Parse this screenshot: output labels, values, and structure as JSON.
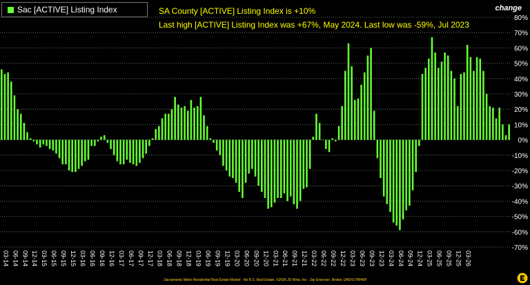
{
  "legend": {
    "label": "Sac [ACTIVE] Listing Index",
    "color": "#66ff33"
  },
  "header": {
    "line1": "SA County [ACTIVE] Listing Index is +10%",
    "line2": "Last high [ACTIVE] Listing Index was +67%, May 2024. Last low was -59%, Jul 2023",
    "change_label": "change"
  },
  "footer": "Sacramento Metro Residential Real Estate Market - No B.S. Real Estate, ©2026 JD Wise, Inc - Jay Emerson, Broker, DRE#1785408",
  "colors": {
    "bar": "#66ff33",
    "grid": "#8a8a8a",
    "header_text": "#ffff00",
    "footer_text": "#ffd21f"
  },
  "logo_icon": "jd-wise-logo-icon",
  "chart_data": {
    "type": "bar",
    "y_unit": "%",
    "ylim": [
      -70,
      80
    ],
    "ytick_step": 10,
    "grid": "horizontal-dotted",
    "yaxis_position": "right",
    "xtick_labels": [
      "03-14",
      "06-14",
      "09-14",
      "12-14",
      "03-15",
      "06-15",
      "09-15",
      "12-15",
      "03-16",
      "06-16",
      "09-16",
      "12-16",
      "03-17",
      "06-17",
      "09-17",
      "12-17",
      "03-18",
      "06-18",
      "09-18",
      "12-18",
      "03-19",
      "06-19",
      "09-19",
      "12-19",
      "03-20",
      "06-20",
      "09-20",
      "12-20",
      "03-21",
      "06-21",
      "09-21",
      "12-21",
      "03-22",
      "06-22",
      "09-22",
      "12-22",
      "03-23",
      "06-23",
      "09-23",
      "12-23",
      "03-24",
      "06-24",
      "09-24",
      "12-24",
      "03-25",
      "06-25",
      "09-25",
      "12-25",
      "03-26"
    ],
    "values": [
      46,
      43,
      44,
      38,
      29,
      20,
      17,
      11,
      5,
      1,
      -1,
      -3,
      -5,
      -3,
      -4,
      -6,
      -7,
      -9,
      -12,
      -16,
      -16,
      -20,
      -21,
      -21,
      -19,
      -17,
      -14,
      -13,
      -4,
      -4,
      -1,
      2,
      3,
      -2,
      -6,
      -10,
      -14,
      -16,
      -16,
      -13,
      -15,
      -16,
      -17,
      -15,
      -12,
      -9,
      -4,
      1,
      7,
      9,
      14,
      17,
      17,
      20,
      28,
      23,
      21,
      22,
      19,
      26,
      21,
      22,
      28,
      16,
      9,
      1,
      -2,
      -7,
      -10,
      -17,
      -20,
      -24,
      -25,
      -28,
      -34,
      -38,
      -28,
      -22,
      -19,
      -24,
      -30,
      -34,
      -38,
      -45,
      -44,
      -41,
      -38,
      -38,
      -35,
      -40,
      -37,
      -42,
      -45,
      -40,
      -32,
      -31,
      -19,
      2,
      17,
      11,
      0,
      -6,
      -8,
      1,
      -1,
      9,
      22,
      45,
      63,
      48,
      26,
      27,
      36,
      44,
      55,
      60,
      19,
      -12,
      -25,
      -37,
      -42,
      -47,
      -54,
      -56,
      -59,
      -52,
      -46,
      -43,
      -33,
      -21,
      -4,
      43,
      47,
      53,
      67,
      57,
      47,
      51,
      57,
      55,
      45,
      40,
      22,
      43,
      44,
      62,
      54,
      45,
      54,
      53,
      45,
      30,
      22,
      21,
      14,
      21,
      10,
      3,
      10
    ]
  }
}
